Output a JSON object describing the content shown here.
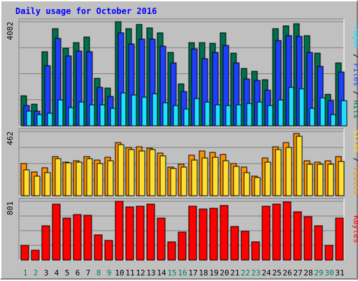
{
  "chart_data": [
    {
      "type": "bar",
      "title": "Daily usage for October 2016",
      "ylabel": "Pages / Files / Hits",
      "ytick": "4082",
      "ylim": [
        0,
        4082
      ],
      "categories": [
        "1",
        "2",
        "3",
        "4",
        "5",
        "6",
        "7",
        "8",
        "9",
        "10",
        "11",
        "12",
        "13",
        "14",
        "15",
        "16",
        "17",
        "18",
        "19",
        "20",
        "21",
        "22",
        "23",
        "24",
        "25",
        "26",
        "27",
        "28",
        "29",
        "30",
        "31"
      ],
      "weekend_days": [
        "1",
        "2",
        "8",
        "9",
        "15",
        "16",
        "22",
        "23",
        "29",
        "30"
      ],
      "series": [
        {
          "name": "Hits",
          "color": "#006f4f",
          "values": [
            1170,
            855,
            2905,
            3805,
            3045,
            3250,
            3470,
            1855,
            1470,
            4082,
            3815,
            3985,
            3825,
            3645,
            2880,
            1645,
            3250,
            3250,
            3225,
            3645,
            2855,
            2260,
            2140,
            1800,
            3805,
            3925,
            4000,
            3535,
            2840,
            1245,
            2475
          ]
        },
        {
          "name": "Files",
          "color": "#1f3fff",
          "values": [
            795,
            585,
            2345,
            3435,
            2735,
            2935,
            2910,
            1495,
            1140,
            3635,
            3210,
            3390,
            3385,
            3125,
            2460,
            1335,
            3000,
            2625,
            2865,
            3145,
            2460,
            1845,
            1785,
            1400,
            3345,
            3540,
            3495,
            2885,
            2340,
            975,
            2120
          ]
        },
        {
          "name": "Pages",
          "color": "#20e0ff",
          "values": [
            575,
            425,
            495,
            1000,
            715,
            935,
            835,
            825,
            675,
            1285,
            1205,
            1130,
            1265,
            905,
            795,
            665,
            1060,
            945,
            815,
            805,
            820,
            865,
            925,
            790,
            1025,
            1520,
            1465,
            680,
            1105,
            435,
            975
          ]
        }
      ]
    },
    {
      "type": "bar",
      "ylabel": "Sites / Visits",
      "ytick": "462",
      "ylim": [
        0,
        462
      ],
      "categories": [
        "1",
        "2",
        "3",
        "4",
        "5",
        "6",
        "7",
        "8",
        "9",
        "10",
        "11",
        "12",
        "13",
        "14",
        "15",
        "16",
        "17",
        "18",
        "19",
        "20",
        "21",
        "22",
        "23",
        "24",
        "25",
        "26",
        "27",
        "28",
        "29",
        "30",
        "31"
      ],
      "series": [
        {
          "name": "Visits",
          "color": "#ff9000",
          "values": [
            230,
            170,
            200,
            280,
            240,
            250,
            280,
            255,
            275,
            380,
            345,
            350,
            340,
            305,
            205,
            225,
            290,
            320,
            310,
            295,
            230,
            205,
            140,
            270,
            350,
            380,
            445,
            250,
            240,
            250,
            280
          ]
        },
        {
          "name": "Sites",
          "color": "#ffe030",
          "values": [
            185,
            140,
            165,
            265,
            235,
            240,
            265,
            230,
            250,
            365,
            330,
            320,
            330,
            285,
            195,
            205,
            255,
            270,
            275,
            250,
            210,
            165,
            130,
            240,
            330,
            345,
            425,
            225,
            225,
            225,
            245
          ]
        }
      ]
    },
    {
      "type": "bar",
      "ylabel": "KBytes",
      "ytick": "801",
      "ylim": [
        0,
        801
      ],
      "categories": [
        "1",
        "2",
        "3",
        "4",
        "5",
        "6",
        "7",
        "8",
        "9",
        "10",
        "11",
        "12",
        "13",
        "14",
        "15",
        "16",
        "17",
        "18",
        "19",
        "20",
        "21",
        "22",
        "23",
        "24",
        "25",
        "26",
        "27",
        "28",
        "29",
        "30",
        "31"
      ],
      "series": [
        {
          "name": "KBytes",
          "color": "#ff0000",
          "values": [
            205,
            135,
            470,
            760,
            575,
            620,
            610,
            345,
            265,
            801,
            725,
            735,
            760,
            575,
            250,
            380,
            730,
            695,
            705,
            740,
            455,
            395,
            250,
            730,
            765,
            790,
            655,
            590,
            465,
            200,
            570
          ]
        }
      ]
    }
  ]
}
